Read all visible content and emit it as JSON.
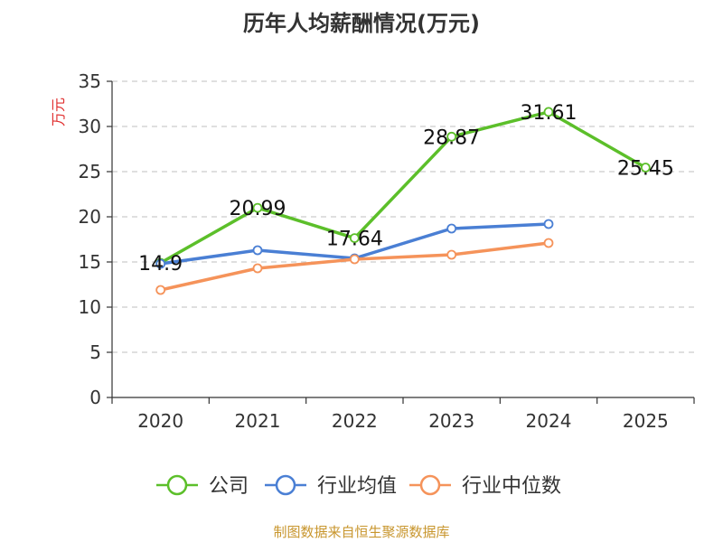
{
  "chart_data": {
    "type": "line",
    "title": "历年人均薪酬情况(万元)",
    "ylabel": "万元",
    "xlabel": "",
    "ylim": [
      0,
      35
    ],
    "yticks": [
      0,
      5,
      10,
      15,
      20,
      25,
      30,
      35
    ],
    "categories": [
      "2020",
      "2021",
      "2022",
      "2023",
      "2024",
      "2025"
    ],
    "grid": true,
    "legend_position": "bottom",
    "series": [
      {
        "name": "公司",
        "color": "#5cbf2a",
        "values": [
          14.9,
          20.99,
          17.64,
          28.87,
          31.61,
          25.45
        ],
        "show_labels": true
      },
      {
        "name": "行业均值",
        "color": "#4a7fd4",
        "values": [
          14.8,
          16.3,
          15.4,
          18.7,
          19.2,
          null
        ],
        "show_labels": false
      },
      {
        "name": "行业中位数",
        "color": "#f5935a",
        "values": [
          11.9,
          14.3,
          15.3,
          15.8,
          17.1,
          null
        ],
        "show_labels": false
      }
    ],
    "data_labels": [
      "14.9",
      "20.99",
      "17.64",
      "28.87",
      "31.61",
      "25.45"
    ]
  },
  "footer": {
    "source": "制图数据来自恒生聚源数据库"
  }
}
